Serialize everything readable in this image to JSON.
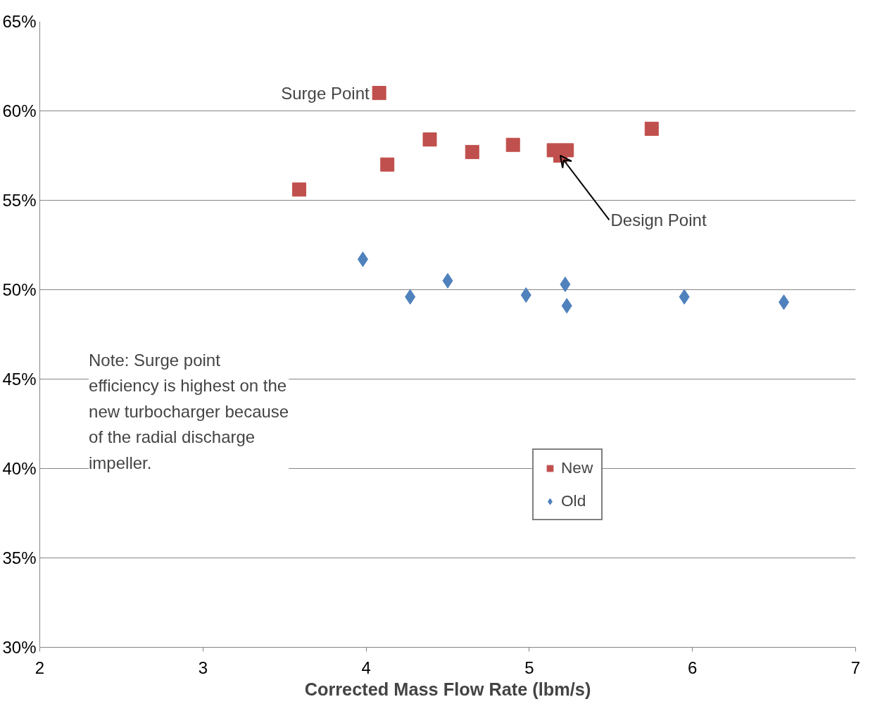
{
  "chart_data": {
    "type": "scatter",
    "xlabel": "Corrected Mass Flow Rate (lbm/s)",
    "xlim": [
      2,
      7
    ],
    "xticks": [
      2,
      3,
      4,
      5,
      6,
      7
    ],
    "ylim": [
      30,
      65
    ],
    "yticks": [
      {
        "value": 30,
        "label": "30%"
      },
      {
        "value": 35,
        "label": "35%"
      },
      {
        "value": 40,
        "label": "40%"
      },
      {
        "value": 45,
        "label": "45%"
      },
      {
        "value": 50,
        "label": "50%"
      },
      {
        "value": 55,
        "label": "55%"
      },
      {
        "value": 60,
        "label": "60%"
      },
      {
        "value": 65,
        "label": "65%"
      }
    ],
    "grid": "y",
    "legend": "right",
    "series": [
      {
        "name": "New",
        "color": "#c0504d",
        "marker": "square",
        "x": [
          3.59,
          4.08,
          4.13,
          4.39,
          4.65,
          4.9,
          5.15,
          5.23,
          5.19,
          5.75
        ],
        "values": [
          55.6,
          61.0,
          57.0,
          58.4,
          57.7,
          58.1,
          57.8,
          57.8,
          57.5,
          59.0
        ]
      },
      {
        "name": "Old",
        "color": "#4f81bd",
        "marker": "diamond",
        "x": [
          3.98,
          4.27,
          4.5,
          4.98,
          5.22,
          5.23,
          5.95,
          6.56
        ],
        "values": [
          51.7,
          49.6,
          50.5,
          49.7,
          50.3,
          49.1,
          49.6,
          49.3
        ]
      }
    ],
    "annotations": [
      {
        "text": "Surge Point",
        "x": 4.08,
        "y": 61.0
      },
      {
        "text": "Design Point",
        "x": 5.19,
        "y": 57.5
      },
      "Note: Surge point\nefficiency is highest on the\nnew turbocharger because\nof the radial discharge\nimpeller."
    ]
  }
}
